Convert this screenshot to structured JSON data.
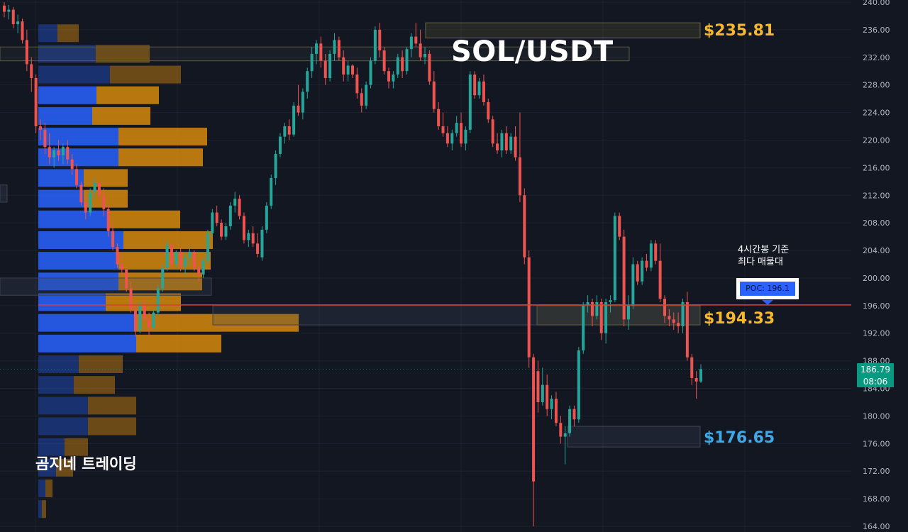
{
  "title": "SOL/USDT",
  "watermark": "곰지네 트레이딩",
  "note_lines": [
    "4시간봉 기준",
    "최다 매물대"
  ],
  "poc_label": "POC: 196.1",
  "levels": [
    {
      "label": "$235.81",
      "value": 235.81,
      "color": "#f5b82e"
    },
    {
      "label": "$194.33",
      "value": 194.33,
      "color": "#f5b82e"
    },
    {
      "label": "$176.65",
      "value": 176.65,
      "color": "#3fa9e8"
    }
  ],
  "current_price": {
    "value": "186.79",
    "countdown": "08:06"
  },
  "colors": {
    "background": "#131722",
    "grid": "#1e2230",
    "up": "#26a69a",
    "down": "#ef5350",
    "poc_line": "#e53935",
    "vp_blue": "#2962ff",
    "vp_orange": "#d68a0c"
  },
  "chart_data": {
    "type": "candlestick",
    "title": "SOL/USDT",
    "timeframe": "4h",
    "ylim": [
      164,
      240
    ],
    "y_ticks": [
      "240.00",
      "236.00",
      "232.00",
      "228.00",
      "224.00",
      "220.00",
      "216.00",
      "212.00",
      "208.00",
      "204.00",
      "200.00",
      "196.00",
      "192.00",
      "188.00",
      "184.00",
      "180.00",
      "176.00",
      "172.00",
      "168.00",
      "164.00"
    ],
    "poc": 196.1,
    "candles_ohlc": [
      [
        239.5,
        240.0,
        237.8,
        238.6
      ],
      [
        238.6,
        239.6,
        237.5,
        238.9
      ],
      [
        238.9,
        239.3,
        236.2,
        236.8
      ],
      [
        236.8,
        238.2,
        235.5,
        237.2
      ],
      [
        237.2,
        237.6,
        234.0,
        234.5
      ],
      [
        234.5,
        236.0,
        230.0,
        231.0
      ],
      [
        231.0,
        232.0,
        227.0,
        229.0
      ],
      [
        229.0,
        229.5,
        221.0,
        222.0
      ],
      [
        222.0,
        223.0,
        220.0,
        221.5
      ],
      [
        221.5,
        222.5,
        218.0,
        219.0
      ],
      [
        219.0,
        221.0,
        216.5,
        217.5
      ],
      [
        217.5,
        219.0,
        216.0,
        218.5
      ],
      [
        218.5,
        220.0,
        217.0,
        217.8
      ],
      [
        217.8,
        219.5,
        216.5,
        219.0
      ],
      [
        219.0,
        220.0,
        216.5,
        217.2
      ],
      [
        217.2,
        218.0,
        215.0,
        215.8
      ],
      [
        215.8,
        216.5,
        213.0,
        213.5
      ],
      [
        213.5,
        214.0,
        210.5,
        211.0
      ],
      [
        211.0,
        212.0,
        208.5,
        209.5
      ],
      [
        209.5,
        213.0,
        209.0,
        212.5
      ],
      [
        212.5,
        214.5,
        211.5,
        213.8
      ],
      [
        213.8,
        214.0,
        211.0,
        212.0
      ],
      [
        212.0,
        213.0,
        209.0,
        210.0
      ],
      [
        210.0,
        210.5,
        206.0,
        206.8
      ],
      [
        206.8,
        208.0,
        204.0,
        204.5
      ],
      [
        204.5,
        205.0,
        201.5,
        202.0
      ],
      [
        202.0,
        203.5,
        200.5,
        201.2
      ],
      [
        201.2,
        201.5,
        198.0,
        198.5
      ],
      [
        198.5,
        199.5,
        195.0,
        195.5
      ],
      [
        195.5,
        196.0,
        191.5,
        192.5
      ],
      [
        192.5,
        196.5,
        192.0,
        196.0
      ],
      [
        196.0,
        197.0,
        193.5,
        194.0
      ],
      [
        194.0,
        195.0,
        191.5,
        192.8
      ],
      [
        192.8,
        195.5,
        192.5,
        195.0
      ],
      [
        195.0,
        199.0,
        194.5,
        198.5
      ],
      [
        198.5,
        202.0,
        198.0,
        201.5
      ],
      [
        201.5,
        205.5,
        201.0,
        204.8
      ],
      [
        204.8,
        205.0,
        201.5,
        202.0
      ],
      [
        202.0,
        204.0,
        201.5,
        203.8
      ],
      [
        203.8,
        204.5,
        201.0,
        201.6
      ],
      [
        201.6,
        203.5,
        200.5,
        203.0
      ],
      [
        203.0,
        204.5,
        202.0,
        203.8
      ],
      [
        203.8,
        204.0,
        201.0,
        201.5
      ],
      [
        201.5,
        202.5,
        199.5,
        200.5
      ],
      [
        200.5,
        203.0,
        200.0,
        202.5
      ],
      [
        202.5,
        207.0,
        202.0,
        206.5
      ],
      [
        206.5,
        210.0,
        206.0,
        209.5
      ],
      [
        209.5,
        210.5,
        207.5,
        208.0
      ],
      [
        208.0,
        208.5,
        205.5,
        206.0
      ],
      [
        206.0,
        208.0,
        205.5,
        207.5
      ],
      [
        207.5,
        211.0,
        207.0,
        210.5
      ],
      [
        210.5,
        212.5,
        209.5,
        211.5
      ],
      [
        211.5,
        212.0,
        208.5,
        209.0
      ],
      [
        209.0,
        209.5,
        205.0,
        205.5
      ],
      [
        205.5,
        207.0,
        204.5,
        206.5
      ],
      [
        206.5,
        207.5,
        204.5,
        205.0
      ],
      [
        205.0,
        206.5,
        203.0,
        203.5
      ],
      [
        203.0,
        207.5,
        202.5,
        207.0
      ],
      [
        207.0,
        211.0,
        206.5,
        210.5
      ],
      [
        210.5,
        215.0,
        210.0,
        214.5
      ],
      [
        214.5,
        218.5,
        213.5,
        218.0
      ],
      [
        218.0,
        221.0,
        217.5,
        220.5
      ],
      [
        220.5,
        222.5,
        219.5,
        222.0
      ],
      [
        222.0,
        223.0,
        220.0,
        220.8
      ],
      [
        220.8,
        225.5,
        220.5,
        225.0
      ],
      [
        225.0,
        228.0,
        223.5,
        224.0
      ],
      [
        224.0,
        227.5,
        223.0,
        227.0
      ],
      [
        227.0,
        230.5,
        226.0,
        230.0
      ],
      [
        230.0,
        233.5,
        229.0,
        232.5
      ],
      [
        232.5,
        234.5,
        231.0,
        234.0
      ],
      [
        234.0,
        235.0,
        230.5,
        231.5
      ],
      [
        231.5,
        232.5,
        228.0,
        229.0
      ],
      [
        229.0,
        233.0,
        228.5,
        232.5
      ],
      [
        232.5,
        235.5,
        231.5,
        234.5
      ],
      [
        234.5,
        235.0,
        231.5,
        232.0
      ],
      [
        232.0,
        233.0,
        228.5,
        229.5
      ],
      [
        229.5,
        231.5,
        228.5,
        230.8
      ],
      [
        230.8,
        231.0,
        229.0,
        229.5
      ],
      [
        229.5,
        230.5,
        226.0,
        226.8
      ],
      [
        226.8,
        227.5,
        224.0,
        225.0
      ],
      [
        225.0,
        228.5,
        224.5,
        228.0
      ],
      [
        228.0,
        232.0,
        227.5,
        231.5
      ],
      [
        231.5,
        236.5,
        231.0,
        236.0
      ],
      [
        236.0,
        237.0,
        232.0,
        233.0
      ],
      [
        233.0,
        233.5,
        229.5,
        230.0
      ],
      [
        230.0,
        230.5,
        227.5,
        228.5
      ],
      [
        228.5,
        230.0,
        227.5,
        229.5
      ],
      [
        229.5,
        232.5,
        229.0,
        232.0
      ],
      [
        232.0,
        233.0,
        229.0,
        230.0
      ],
      [
        230.0,
        233.5,
        229.5,
        233.2
      ],
      [
        233.2,
        235.5,
        232.0,
        235.0
      ],
      [
        235.0,
        237.0,
        233.5,
        234.0
      ],
      [
        234.0,
        236.0,
        231.5,
        232.0
      ],
      [
        232.0,
        233.5,
        231.0,
        232.5
      ],
      [
        232.5,
        233.0,
        228.0,
        228.5
      ],
      [
        228.5,
        230.0,
        224.0,
        224.5
      ],
      [
        224.5,
        225.5,
        221.5,
        222.0
      ],
      [
        222.0,
        224.0,
        220.5,
        221.0
      ],
      [
        221.0,
        222.0,
        219.0,
        219.5
      ],
      [
        219.5,
        221.5,
        218.5,
        221.0
      ],
      [
        221.0,
        223.5,
        220.5,
        222.5
      ],
      [
        222.5,
        224.0,
        219.0,
        219.5
      ],
      [
        219.5,
        222.0,
        218.5,
        221.5
      ],
      [
        221.5,
        230.0,
        221.0,
        229.5
      ],
      [
        229.5,
        230.0,
        226.0,
        226.5
      ],
      [
        226.5,
        229.0,
        226.0,
        228.5
      ],
      [
        228.5,
        229.5,
        225.0,
        225.5
      ],
      [
        225.5,
        226.0,
        222.5,
        223.0
      ],
      [
        223.0,
        223.5,
        219.0,
        219.5
      ],
      [
        219.5,
        221.0,
        218.0,
        218.5
      ],
      [
        218.5,
        221.5,
        217.5,
        221.0
      ],
      [
        221.0,
        222.0,
        218.0,
        218.5
      ],
      [
        218.5,
        221.0,
        218.0,
        220.5
      ],
      [
        220.5,
        222.0,
        217.0,
        217.5
      ],
      [
        217.5,
        224.0,
        211.0,
        212.0
      ],
      [
        212.0,
        213.0,
        202.0,
        203.0
      ],
      [
        203.0,
        204.0,
        187.0,
        188.5
      ],
      [
        188.5,
        189.0,
        164.0,
        170.5
      ],
      [
        186.5,
        188.0,
        180.5,
        182.0
      ],
      [
        182.0,
        187.0,
        181.5,
        184.5
      ],
      [
        184.5,
        186.0,
        180.0,
        181.0
      ],
      [
        181.0,
        183.0,
        179.5,
        182.5
      ],
      [
        182.5,
        183.5,
        178.5,
        179.0
      ],
      [
        179.0,
        180.0,
        176.0,
        177.0
      ],
      [
        177.0,
        178.5,
        173.0,
        177.5
      ],
      [
        177.5,
        181.5,
        177.0,
        181.0
      ],
      [
        181.0,
        181.5,
        178.5,
        179.5
      ],
      [
        179.5,
        190.0,
        179.0,
        189.5
      ],
      [
        189.5,
        196.5,
        189.0,
        196.0
      ],
      [
        196.0,
        197.5,
        195.0,
        196.5
      ],
      [
        196.5,
        197.0,
        193.0,
        194.5
      ],
      [
        194.5,
        197.5,
        194.0,
        196.5
      ],
      [
        196.5,
        197.0,
        191.0,
        192.0
      ],
      [
        192.0,
        197.0,
        190.5,
        196.5
      ],
      [
        196.5,
        197.5,
        195.0,
        196.8
      ],
      [
        196.8,
        209.5,
        196.5,
        209.0
      ],
      [
        209.0,
        209.5,
        205.5,
        206.0
      ],
      [
        206.0,
        207.0,
        193.0,
        194.0
      ],
      [
        194.0,
        197.5,
        192.5,
        196.0
      ],
      [
        196.0,
        203.0,
        195.5,
        202.0
      ],
      [
        202.0,
        202.5,
        199.0,
        199.5
      ],
      [
        199.5,
        203.0,
        199.0,
        202.5
      ],
      [
        202.5,
        203.5,
        201.0,
        201.5
      ],
      [
        201.5,
        205.5,
        201.0,
        205.0
      ],
      [
        205.0,
        205.5,
        202.0,
        202.5
      ],
      [
        202.5,
        205.0,
        196.5,
        197.0
      ],
      [
        197.0,
        197.5,
        193.5,
        194.5
      ],
      [
        194.5,
        195.5,
        193.0,
        194.0
      ],
      [
        194.0,
        195.0,
        192.5,
        193.5
      ],
      [
        193.5,
        195.0,
        192.0,
        193.0
      ],
      [
        193.0,
        197.0,
        192.0,
        196.5
      ],
      [
        196.5,
        198.0,
        188.0,
        188.5
      ],
      [
        188.5,
        189.0,
        184.5,
        185.5
      ],
      [
        185.5,
        186.5,
        182.5,
        185.0
      ],
      [
        185.0,
        187.5,
        184.8,
        186.8
      ]
    ],
    "volume_profile_note": "volume profile drawn on left side (blue = buy, orange = sell)"
  }
}
